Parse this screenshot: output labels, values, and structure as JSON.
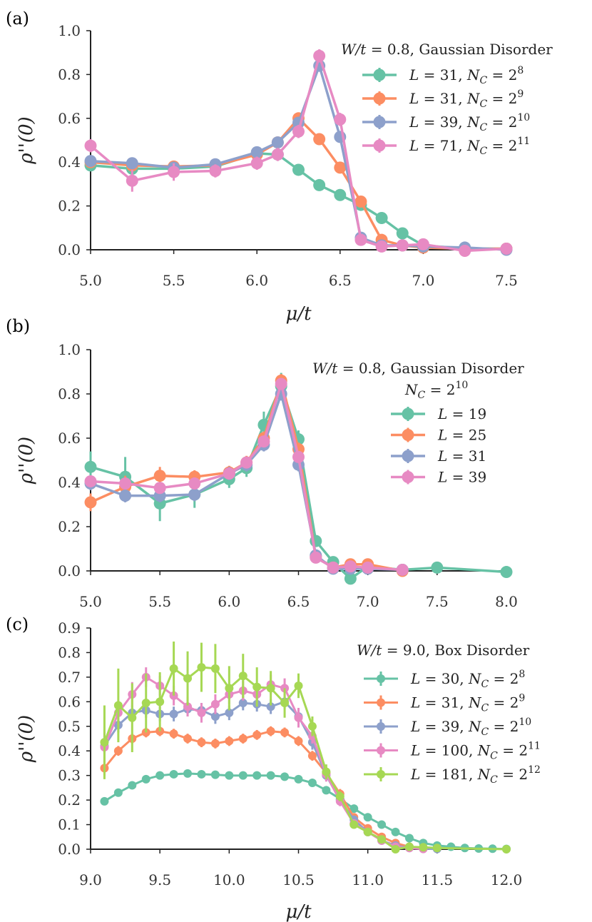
{
  "colors": {
    "teal": "#66c2a5",
    "orange": "#fc8d62",
    "blue": "#8da0cb",
    "pink": "#e78ac3",
    "green": "#a6d854",
    "axis": "#222222"
  },
  "chart_data": [
    {
      "type": "line",
      "panel": "(a)",
      "xlabel": "μ/t",
      "ylabel": "ρ''(0)",
      "xlim": [
        5.0,
        7.5
      ],
      "ylim": [
        0.0,
        1.0
      ],
      "xticks": [
        "5.0",
        "5.5",
        "6.0",
        "6.5",
        "7.0",
        "7.5"
      ],
      "yticks": [
        "0.0",
        "0.2",
        "0.4",
        "0.6",
        "0.8",
        "1.0"
      ],
      "legend_title": [
        "W/t = 0.8, Gaussian Disorder"
      ],
      "legend_position": "top-right",
      "series": [
        {
          "name": "L = 31, N_C = 2^8",
          "color": "teal",
          "x": [
            5.0,
            5.25,
            5.5,
            5.75,
            6.0,
            6.125,
            6.25,
            6.375,
            6.5,
            6.625,
            6.75,
            6.875,
            7.0,
            7.25,
            7.5
          ],
          "y": [
            0.385,
            0.37,
            0.37,
            0.38,
            0.44,
            0.435,
            0.365,
            0.295,
            0.25,
            0.205,
            0.145,
            0.075,
            0.02,
            0.005,
            0.005
          ],
          "err": [
            0.02,
            0.02,
            0.02,
            0.02,
            0.02,
            0.02,
            0.02,
            0.02,
            0.02,
            0.02,
            0.02,
            0.02,
            0.01,
            0.01,
            0.01
          ]
        },
        {
          "name": "L = 31, N_C = 2^9",
          "color": "orange",
          "x": [
            5.0,
            5.25,
            5.5,
            5.75,
            6.0,
            6.125,
            6.25,
            6.375,
            6.5,
            6.625,
            6.75,
            6.875,
            7.0,
            7.25,
            7.5
          ],
          "y": [
            0.4,
            0.385,
            0.38,
            0.385,
            0.435,
            0.49,
            0.6,
            0.505,
            0.375,
            0.22,
            0.045,
            0.02,
            0.01,
            0.005,
            0.005
          ],
          "err": [
            0.02,
            0.02,
            0.02,
            0.02,
            0.02,
            0.02,
            0.02,
            0.02,
            0.02,
            0.02,
            0.02,
            0.01,
            0.01,
            0.01,
            0.01
          ]
        },
        {
          "name": "L = 39, N_C = 2^10",
          "color": "blue",
          "x": [
            5.0,
            5.25,
            5.5,
            5.75,
            6.0,
            6.125,
            6.25,
            6.375,
            6.5,
            6.625,
            6.75,
            6.875,
            7.0,
            7.25,
            7.5
          ],
          "y": [
            0.405,
            0.395,
            0.375,
            0.39,
            0.445,
            0.49,
            0.58,
            0.84,
            0.515,
            0.055,
            0.02,
            0.02,
            0.015,
            0.01,
            0.0
          ],
          "err": [
            0.02,
            0.02,
            0.02,
            0.02,
            0.02,
            0.02,
            0.02,
            0.02,
            0.02,
            0.02,
            0.01,
            0.01,
            0.01,
            0.01,
            0.01
          ]
        },
        {
          "name": "L = 71, N_C = 2^11",
          "color": "pink",
          "x": [
            5.0,
            5.25,
            5.5,
            5.75,
            6.0,
            6.125,
            6.25,
            6.375,
            6.5,
            6.625,
            6.75,
            6.875,
            7.0,
            7.25,
            7.5
          ],
          "y": [
            0.475,
            0.315,
            0.355,
            0.36,
            0.395,
            0.435,
            0.54,
            0.885,
            0.595,
            0.045,
            0.015,
            0.02,
            0.025,
            -0.005,
            0.005
          ],
          "err": [
            0.03,
            0.05,
            0.04,
            0.03,
            0.03,
            0.03,
            0.03,
            0.03,
            0.03,
            0.02,
            0.01,
            0.01,
            0.01,
            0.01,
            0.01
          ]
        }
      ]
    },
    {
      "type": "line",
      "panel": "(b)",
      "xlabel": "",
      "ylabel": "ρ''(0)",
      "xlim": [
        5.0,
        8.0
      ],
      "ylim": [
        0.0,
        1.0
      ],
      "xticks": [
        "5.0",
        "5.5",
        "6.0",
        "6.5",
        "7.0",
        "7.5",
        "8.0"
      ],
      "yticks": [
        "0.0",
        "0.2",
        "0.4",
        "0.6",
        "0.8",
        "1.0"
      ],
      "legend_title": [
        "W/t = 0.8, Gaussian Disorder",
        "N_C = 2^10"
      ],
      "legend_position": "top-right",
      "series": [
        {
          "name": "L = 19",
          "color": "teal",
          "x": [
            5.0,
            5.25,
            5.5,
            5.75,
            6.0,
            6.125,
            6.25,
            6.375,
            6.5,
            6.625,
            6.75,
            6.875,
            7.0,
            7.25,
            7.5,
            8.0
          ],
          "y": [
            0.47,
            0.425,
            0.305,
            0.345,
            0.415,
            0.465,
            0.66,
            0.835,
            0.595,
            0.135,
            0.04,
            -0.035,
            0.02,
            0.005,
            0.015,
            -0.005
          ],
          "err": [
            0.07,
            0.09,
            0.08,
            0.06,
            0.04,
            0.04,
            0.06,
            0.06,
            0.04,
            0.02,
            0.02,
            0.02,
            0.01,
            0.01,
            0.01,
            0.01
          ]
        },
        {
          "name": "L = 25",
          "color": "orange",
          "x": [
            5.0,
            5.25,
            5.5,
            5.75,
            6.0,
            6.125,
            6.25,
            6.375,
            6.5,
            6.625,
            6.75,
            6.875,
            7.0,
            7.25
          ],
          "y": [
            0.31,
            0.38,
            0.43,
            0.425,
            0.445,
            0.49,
            0.6,
            0.86,
            0.55,
            0.065,
            0.015,
            0.03,
            0.03,
            0.0
          ],
          "err": [
            0.04,
            0.05,
            0.04,
            0.03,
            0.03,
            0.03,
            0.03,
            0.03,
            0.03,
            0.02,
            0.01,
            0.01,
            0.01,
            0.01
          ]
        },
        {
          "name": "L = 31",
          "color": "blue",
          "x": [
            5.0,
            5.25,
            5.5,
            5.75,
            6.0,
            6.125,
            6.25,
            6.375,
            6.5,
            6.625,
            6.75,
            6.875,
            7.0,
            7.25
          ],
          "y": [
            0.395,
            0.34,
            0.34,
            0.345,
            0.44,
            0.48,
            0.57,
            0.8,
            0.48,
            0.07,
            0.01,
            0.01,
            0.01,
            0.005
          ],
          "err": [
            0.03,
            0.03,
            0.03,
            0.03,
            0.03,
            0.03,
            0.03,
            0.03,
            0.03,
            0.02,
            0.01,
            0.01,
            0.01,
            0.01
          ]
        },
        {
          "name": "L = 39",
          "color": "pink",
          "x": [
            5.0,
            5.25,
            5.5,
            5.75,
            6.0,
            6.125,
            6.25,
            6.375,
            6.5,
            6.625,
            6.75,
            6.875,
            7.0,
            7.25
          ],
          "y": [
            0.405,
            0.395,
            0.375,
            0.395,
            0.44,
            0.49,
            0.585,
            0.845,
            0.515,
            0.06,
            0.015,
            0.02,
            0.015,
            0.005
          ],
          "err": [
            0.02,
            0.02,
            0.02,
            0.02,
            0.02,
            0.02,
            0.02,
            0.02,
            0.02,
            0.01,
            0.01,
            0.01,
            0.01,
            0.01
          ]
        }
      ]
    },
    {
      "type": "line",
      "panel": "(c)",
      "xlabel": "μ/t",
      "ylabel": "ρ''(0)",
      "xlim": [
        9.0,
        12.0
      ],
      "ylim": [
        0.0,
        0.9
      ],
      "xticks": [
        "9.0",
        "9.5",
        "10.0",
        "10.5",
        "11.0",
        "11.5",
        "12.0"
      ],
      "yticks": [
        "0.0",
        "0.1",
        "0.2",
        "0.3",
        "0.4",
        "0.5",
        "0.6",
        "0.7",
        "0.8",
        "0.9"
      ],
      "legend_title": [
        "W/t = 9.0, Box Disorder"
      ],
      "legend_position": "top-right",
      "series": [
        {
          "name": "L = 30, N_C = 2^8",
          "color": "teal",
          "x": [
            9.1,
            9.2,
            9.3,
            9.4,
            9.5,
            9.6,
            9.7,
            9.8,
            9.9,
            10.0,
            10.1,
            10.2,
            10.3,
            10.4,
            10.5,
            10.6,
            10.7,
            10.8,
            10.9,
            11.0,
            11.1,
            11.2,
            11.3,
            11.4,
            11.5,
            11.6,
            11.7,
            11.8,
            11.9,
            12.0
          ],
          "y": [
            0.195,
            0.23,
            0.26,
            0.285,
            0.3,
            0.305,
            0.308,
            0.305,
            0.303,
            0.3,
            0.3,
            0.3,
            0.3,
            0.295,
            0.285,
            0.27,
            0.24,
            0.205,
            0.165,
            0.13,
            0.1,
            0.07,
            0.045,
            0.025,
            0.015,
            0.01,
            0.005,
            0.003,
            0.002,
            0.001
          ],
          "err": [
            0.01,
            0.01,
            0.01,
            0.01,
            0.01,
            0.01,
            0.01,
            0.01,
            0.01,
            0.01,
            0.01,
            0.01,
            0.01,
            0.01,
            0.01,
            0.01,
            0.01,
            0.01,
            0.01,
            0.01,
            0.005,
            0.005,
            0.005,
            0.005,
            0.005,
            0.005,
            0.005,
            0.005,
            0.005,
            0.005
          ]
        },
        {
          "name": "L = 31, N_C = 2^9",
          "color": "orange",
          "x": [
            9.1,
            9.2,
            9.3,
            9.4,
            9.5,
            9.6,
            9.7,
            9.8,
            9.9,
            10.0,
            10.1,
            10.2,
            10.3,
            10.4,
            10.5,
            10.6,
            10.7,
            10.8,
            10.9,
            11.0,
            11.1,
            11.2,
            11.3,
            11.4,
            11.5
          ],
          "y": [
            0.33,
            0.4,
            0.45,
            0.475,
            0.48,
            0.47,
            0.45,
            0.435,
            0.43,
            0.44,
            0.45,
            0.465,
            0.48,
            0.475,
            0.44,
            0.38,
            0.31,
            0.225,
            0.13,
            0.085,
            0.05,
            0.025,
            0.01,
            0.005,
            0.002
          ],
          "err": [
            0.03,
            0.02,
            0.02,
            0.02,
            0.02,
            0.02,
            0.02,
            0.02,
            0.02,
            0.02,
            0.02,
            0.02,
            0.02,
            0.02,
            0.02,
            0.02,
            0.02,
            0.02,
            0.01,
            0.01,
            0.01,
            0.01,
            0.005,
            0.005,
            0.005
          ]
        },
        {
          "name": "L = 39, N_C = 2^10",
          "color": "blue",
          "x": [
            9.1,
            9.2,
            9.3,
            9.4,
            9.5,
            9.6,
            9.7,
            9.8,
            9.9,
            10.0,
            10.1,
            10.2,
            10.3,
            10.4,
            10.5,
            10.6,
            10.7,
            10.8,
            10.9,
            11.0,
            11.1,
            11.2,
            11.3,
            11.4,
            11.5
          ],
          "y": [
            0.42,
            0.505,
            0.555,
            0.565,
            0.55,
            0.55,
            0.57,
            0.565,
            0.54,
            0.555,
            0.595,
            0.59,
            0.58,
            0.6,
            0.54,
            0.435,
            0.3,
            0.2,
            0.12,
            0.07,
            0.035,
            0.015,
            0.005,
            0.002,
            0.001
          ],
          "err": [
            0.03,
            0.03,
            0.03,
            0.03,
            0.03,
            0.03,
            0.03,
            0.03,
            0.03,
            0.03,
            0.03,
            0.03,
            0.03,
            0.03,
            0.03,
            0.03,
            0.02,
            0.02,
            0.01,
            0.01,
            0.01,
            0.005,
            0.005,
            0.005,
            0.005
          ]
        },
        {
          "name": "L = 100, N_C = 2^11",
          "color": "pink",
          "x": [
            9.1,
            9.2,
            9.3,
            9.4,
            9.5,
            9.6,
            9.7,
            9.8,
            9.9,
            10.0,
            10.1,
            10.2,
            10.3,
            10.4,
            10.5,
            10.6,
            10.7,
            10.8,
            10.9,
            11.0,
            11.1,
            11.2,
            11.3,
            11.4
          ],
          "y": [
            0.415,
            0.555,
            0.63,
            0.7,
            0.665,
            0.625,
            0.58,
            0.555,
            0.59,
            0.63,
            0.645,
            0.63,
            0.67,
            0.655,
            0.535,
            0.46,
            0.305,
            0.195,
            0.105,
            0.07,
            0.035,
            0.01,
            0.005,
            0.001
          ],
          "err": [
            0.06,
            0.05,
            0.05,
            0.04,
            0.04,
            0.04,
            0.04,
            0.04,
            0.04,
            0.04,
            0.04,
            0.04,
            0.04,
            0.04,
            0.04,
            0.03,
            0.03,
            0.02,
            0.01,
            0.01,
            0.01,
            0.005,
            0.005,
            0.005
          ]
        },
        {
          "name": "L = 181, N_C = 2^12",
          "color": "green",
          "x": [
            9.1,
            9.2,
            9.3,
            9.4,
            9.5,
            9.6,
            9.7,
            9.8,
            9.9,
            10.0,
            10.1,
            10.2,
            10.3,
            10.4,
            10.5,
            10.6,
            10.7,
            10.8,
            10.9,
            11.0,
            11.1,
            11.2,
            11.3,
            11.4,
            11.5,
            12.0
          ],
          "y": [
            0.435,
            0.585,
            0.535,
            0.595,
            0.6,
            0.735,
            0.695,
            0.74,
            0.735,
            0.655,
            0.705,
            0.66,
            0.655,
            0.595,
            0.665,
            0.5,
            0.315,
            0.215,
            0.1,
            0.07,
            0.04,
            0.0,
            0.01,
            0.008,
            0.005,
            0.0
          ],
          "err": [
            0.15,
            0.15,
            0.14,
            0.12,
            0.12,
            0.11,
            0.11,
            0.1,
            0.1,
            0.09,
            0.09,
            0.08,
            0.07,
            0.06,
            0.05,
            0.04,
            0.03,
            0.02,
            0.01,
            0.01,
            0.01,
            0.005,
            0.005,
            0.005,
            0.005,
            0.005
          ]
        }
      ]
    }
  ]
}
